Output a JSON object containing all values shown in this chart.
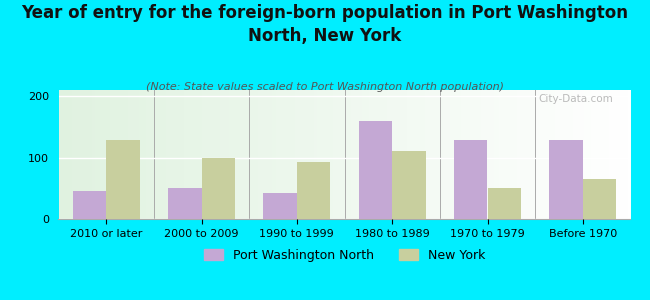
{
  "title": "Year of entry for the foreign-born population in Port Washington\nNorth, New York",
  "subtitle": "(Note: State values scaled to Port Washington North population)",
  "categories": [
    "2010 or later",
    "2000 to 2009",
    "1990 to 1999",
    "1980 to 1989",
    "1970 to 1979",
    "Before 1970"
  ],
  "pwn_values": [
    45,
    50,
    43,
    160,
    128,
    128
  ],
  "ny_values": [
    128,
    100,
    93,
    110,
    50,
    65
  ],
  "pwn_color": "#c4a8d4",
  "ny_color": "#c8cf9e",
  "background_color": "#00eeff",
  "ylim": [
    0,
    210
  ],
  "yticks": [
    0,
    100,
    200
  ],
  "bar_width": 0.35,
  "title_fontsize": 12,
  "subtitle_fontsize": 8,
  "tick_fontsize": 8,
  "legend_fontsize": 9,
  "watermark": "City-Data.com"
}
